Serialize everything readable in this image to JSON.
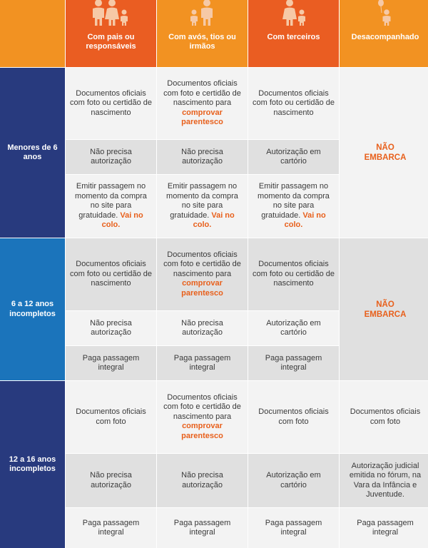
{
  "columns": [
    {
      "label": "Com pais ou responsáveis",
      "icon": "family-parents-child-icon"
    },
    {
      "label": "Com avós, tios ou irmãos",
      "icon": "family-relative-child-icon"
    },
    {
      "label": "Com terceiros",
      "icon": "adult-with-child-icon"
    },
    {
      "label": "Desacompanhado",
      "icon": "child-with-balloon-icon"
    }
  ],
  "colors": {
    "orange": "#f29222",
    "red_orange": "#ea5d22",
    "navy": "#283a7e",
    "blue": "#1b74bb",
    "highlight": "#e8601c"
  },
  "groups": [
    {
      "label": "Menores de 6 anos",
      "docs": {
        "col1": "Documentos oficiais com foto ou certidão de nascimento",
        "col2_pre": "Documentos oficiais com foto e certidão de nascimento para",
        "col2_hl": "comprovar parentesco",
        "col3": "Documentos oficiais com foto ou certidão de nascimento"
      },
      "auth": {
        "col1": "Não precisa autorização",
        "col2": "Não precisa autorização",
        "col3": "Autorização em cartório"
      },
      "ticket": {
        "text": "Emitir passagem no momento da compra no site para gratuidade.",
        "hl": "Vai no colo."
      },
      "unaccompanied": "NÃO EMBARCA"
    },
    {
      "label": "6 a 12 anos incompletos",
      "docs": {
        "col1": "Documentos oficiais com foto ou certidão de nascimento",
        "col2_pre": "Documentos oficiais com foto e certidão de nascimento para",
        "col2_hl": "comprovar parentesco",
        "col3": "Documentos oficiais com foto ou certidão de nascimento"
      },
      "auth": {
        "col1": "Não precisa autorização",
        "col2": "Não precisa autorização",
        "col3": "Autorização em cartório"
      },
      "ticket": {
        "text": "Paga passagem integral"
      },
      "unaccompanied": "NÃO EMBARCA"
    },
    {
      "label": "12 a 16 anos incompletos",
      "docs": {
        "col1": "Documentos oficiais com foto",
        "col2_pre": "Documentos oficiais com foto e certidão de nascimento para",
        "col2_hl": "comprovar parentesco",
        "col3": "Documentos oficiais com foto",
        "col4": "Documentos oficiais com foto"
      },
      "auth": {
        "col1": "Não precisa autorização",
        "col2": "Não precisa autorização",
        "col3": "Autorização em cartório",
        "col4": "Autorização judicial emitida no fórum, na Vara da Infância e Juventude."
      },
      "ticket": {
        "text": "Paga passagem integral"
      }
    }
  ]
}
